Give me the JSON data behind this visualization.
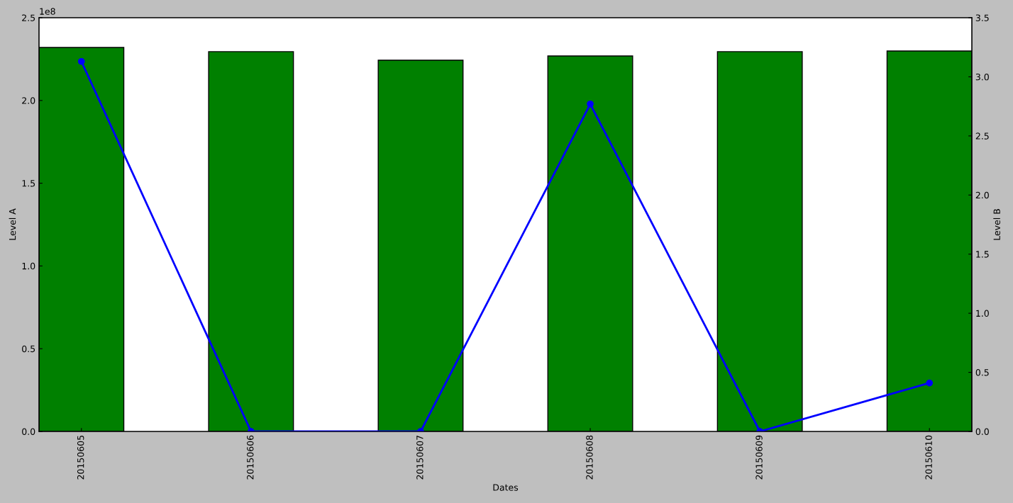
{
  "chart_data": {
    "type": "bar",
    "xlabel": "Dates",
    "ylabel": "Level A",
    "y2label": "Level B",
    "categories": [
      "20150605",
      "20150606",
      "20150607",
      "20150608",
      "20150609",
      "20150610"
    ],
    "series": [
      {
        "name": null,
        "color": "#008000",
        "values": [
          2.32,
          2.295,
          2.243,
          2.269,
          2.295,
          2.299
        ]
      },
      {
        "name": null,
        "type": "line",
        "axis": "y2",
        "color": "#0000ff",
        "values": [
          3.13,
          0.0,
          0.0,
          2.77,
          0.0,
          0.41
        ]
      }
    ],
    "ylim": [
      0,
      2.5
    ],
    "yticks": [
      {
        "value": 0,
        "label": "0.0"
      },
      {
        "value": 0.5,
        "label": "0.5"
      },
      {
        "value": 1,
        "label": "1.0"
      },
      {
        "value": 1.5,
        "label": "1.5"
      },
      {
        "value": 2,
        "label": "2.0"
      },
      {
        "value": 2.5,
        "label": "2.5"
      }
    ],
    "y2lim": [
      0,
      3.5
    ],
    "y2ticks": [
      {
        "value": 0,
        "label": "0.0"
      },
      {
        "value": 0.5,
        "label": "0.5"
      },
      {
        "value": 1,
        "label": "1.0"
      },
      {
        "value": 1.5,
        "label": "1.5"
      },
      {
        "value": 2,
        "label": "2.0"
      },
      {
        "value": 2.5,
        "label": "2.5"
      },
      {
        "value": 3,
        "label": "3.0"
      },
      {
        "value": 3.5,
        "label": "3.5"
      }
    ],
    "annotations": [
      "1e8"
    ],
    "marker": "circle",
    "line_style": "solid",
    "grid": false,
    "legend": false
  }
}
